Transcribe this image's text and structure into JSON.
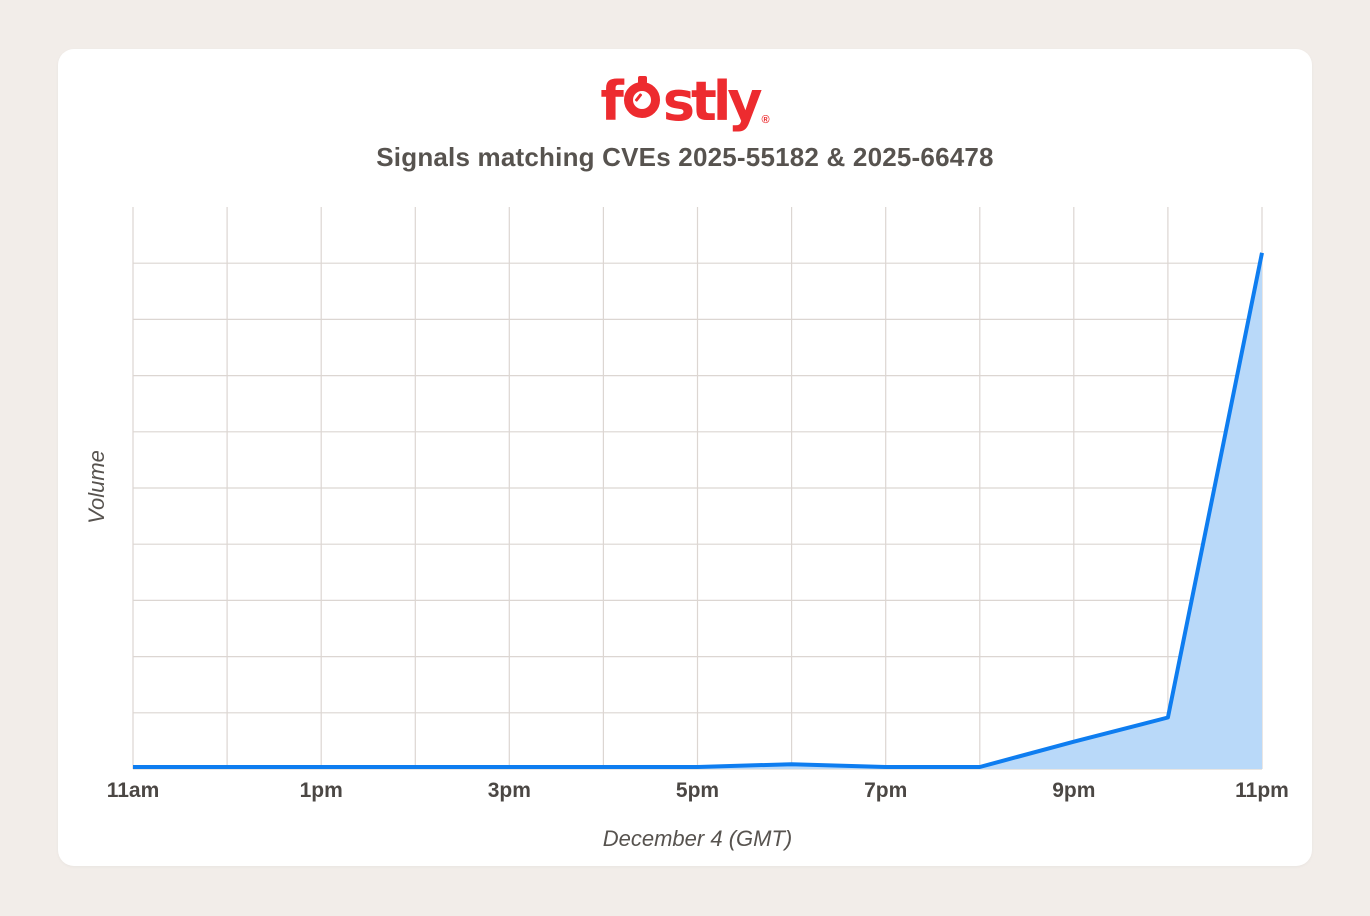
{
  "page": {
    "background": "#f2ede9"
  },
  "card": {
    "background": "#ffffff"
  },
  "logo": {
    "brand": "fastly",
    "part_f": "f",
    "part_rest": "stly",
    "registered": "®",
    "color": "#ed2b2f"
  },
  "title": "Signals matching CVEs 2025-55182 & 2025-66478",
  "chart_data": {
    "type": "area",
    "title": "Signals matching CVEs 2025-55182 & 2025-66478",
    "x": [
      "11am",
      "12pm",
      "1pm",
      "2pm",
      "3pm",
      "4pm",
      "5pm",
      "6pm",
      "7pm",
      "8pm",
      "9pm",
      "10pm",
      "11pm"
    ],
    "values": [
      0,
      0,
      0,
      0,
      0,
      0,
      0,
      0.05,
      0,
      0,
      0.45,
      0.88,
      9.15
    ],
    "x_tick_labels": [
      "11am",
      "1pm",
      "3pm",
      "5pm",
      "7pm",
      "9pm",
      "11pm"
    ],
    "xlabel": "December 4 (GMT)",
    "ylabel": "Volume",
    "ylim": [
      0,
      10
    ],
    "grid": true,
    "grid_columns": 12,
    "grid_rows": 10,
    "legend": "none",
    "line_color": "#0e7df0",
    "fill_color": "#b9d9f9",
    "grid_color": "#dcd6d2"
  }
}
